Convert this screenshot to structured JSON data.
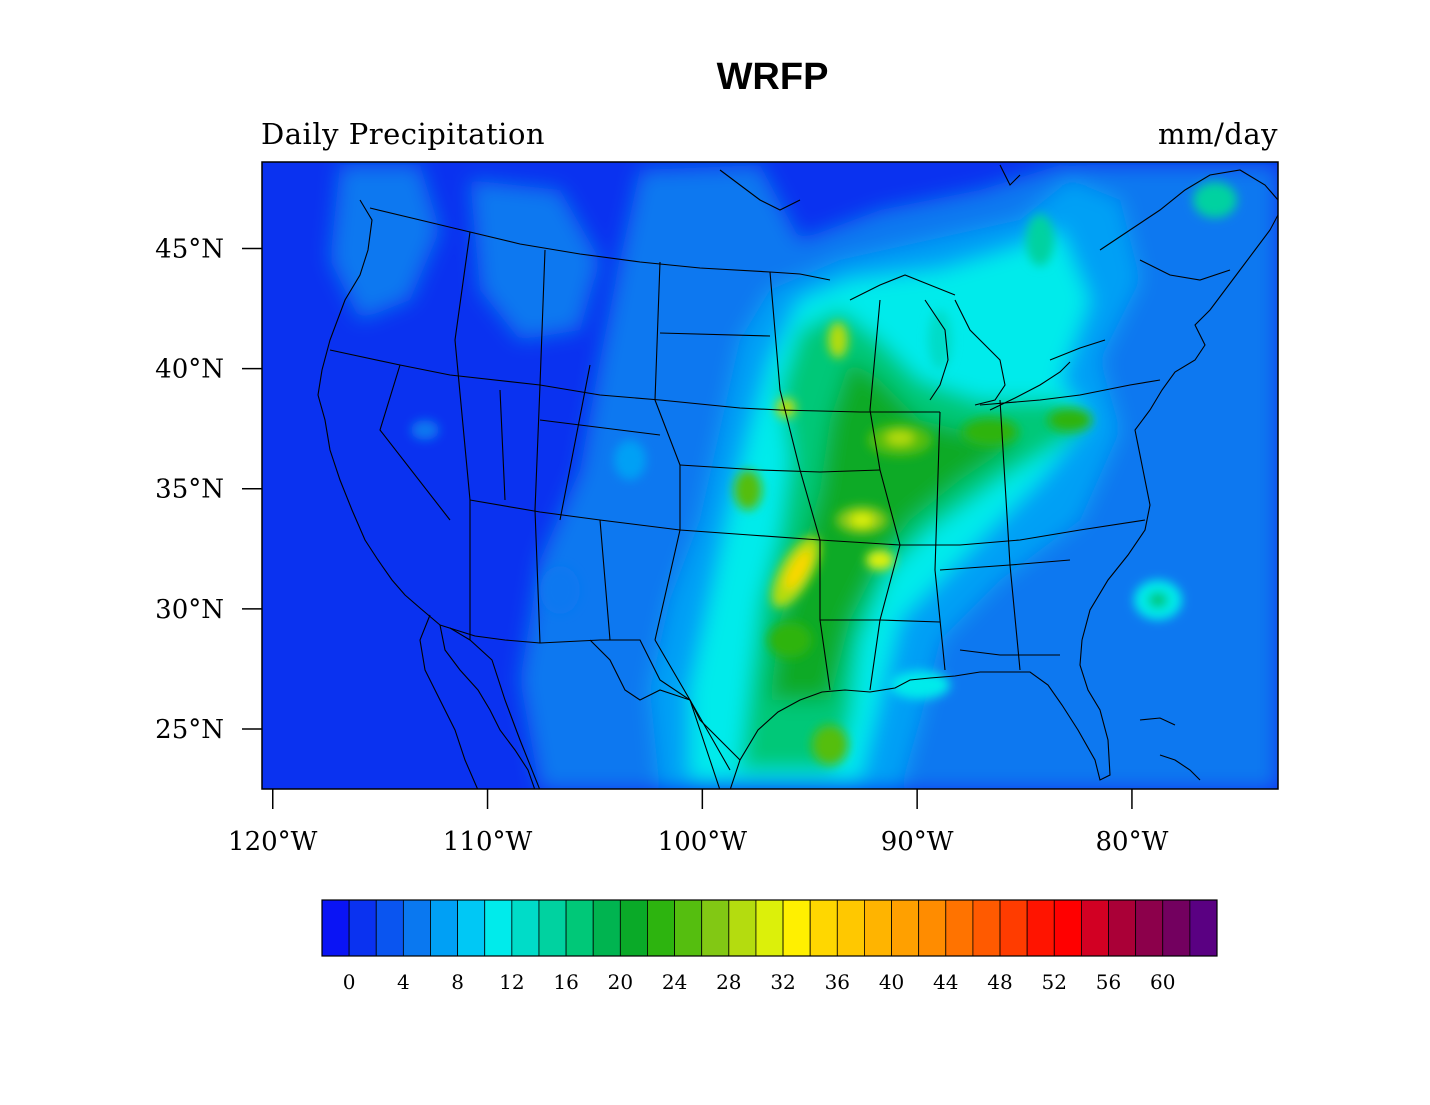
{
  "title": "WRFP",
  "left_string": "Daily Precipitation",
  "right_string": "mm/day",
  "map": {
    "region": "Contiguous United States",
    "lon_range": [
      -120.5,
      -73.2
    ],
    "lat_range": [
      22.5,
      48.6
    ],
    "lat_ticks": [
      {
        "value": 45,
        "label": "45°N"
      },
      {
        "value": 40,
        "label": "40°N"
      },
      {
        "value": 35,
        "label": "35°N"
      },
      {
        "value": 30,
        "label": "30°N"
      },
      {
        "value": 25,
        "label": "25°N"
      }
    ],
    "lon_ticks": [
      {
        "value": -120,
        "label": "120°W"
      },
      {
        "value": -110,
        "label": "110°W"
      },
      {
        "value": -100,
        "label": "100°W"
      },
      {
        "value": -90,
        "label": "90°W"
      },
      {
        "value": -80,
        "label": "80°W"
      }
    ]
  },
  "colorbar": {
    "colors": [
      "#0a14f5",
      "#0a32f0",
      "#0a55f0",
      "#0a78f0",
      "#00a0f5",
      "#00c8f5",
      "#00ebeb",
      "#00dcc8",
      "#00d2a0",
      "#00c878",
      "#00b450",
      "#0aaa28",
      "#2db40f",
      "#55be0f",
      "#82c814",
      "#b4dc0f",
      "#dcf00a",
      "#fff000",
      "#ffd700",
      "#ffc800",
      "#ffb400",
      "#ffa000",
      "#ff8c00",
      "#ff7300",
      "#ff5a00",
      "#ff3c00",
      "#ff1400",
      "#ff0000",
      "#d20023",
      "#aa0037",
      "#8c004b",
      "#73005f",
      "#5a0082"
    ],
    "labels": [
      "0",
      "4",
      "8",
      "12",
      "16",
      "20",
      "24",
      "28",
      "32",
      "36",
      "40",
      "44",
      "48",
      "52",
      "56",
      "60"
    ]
  },
  "field_features": [
    {
      "lon": -95.5,
      "lat": 34.5,
      "value": 24
    },
    {
      "lon": -93,
      "lat": 37,
      "value": 22
    },
    {
      "lon": -89,
      "lat": 38.5,
      "value": 22
    },
    {
      "lon": -96,
      "lat": 31.5,
      "value": 30
    },
    {
      "lon": -94.5,
      "lat": 41.5,
      "value": 28
    },
    {
      "lon": -93,
      "lat": 34,
      "value": 26
    },
    {
      "lon": -85,
      "lat": 38,
      "value": 18
    },
    {
      "lon": -92,
      "lat": 28.5,
      "value": 16
    },
    {
      "lon": -95,
      "lat": 24,
      "value": 18
    },
    {
      "lon": -79,
      "lat": 30,
      "value": 12
    },
    {
      "lon": -82,
      "lat": 44,
      "value": 14
    },
    {
      "lon": -77,
      "lat": 46,
      "value": 12
    },
    {
      "lon": -103,
      "lat": 42,
      "value": 8
    },
    {
      "lon": -104,
      "lat": 35,
      "value": 6
    },
    {
      "lon": -108,
      "lat": 28,
      "value": 6
    }
  ]
}
